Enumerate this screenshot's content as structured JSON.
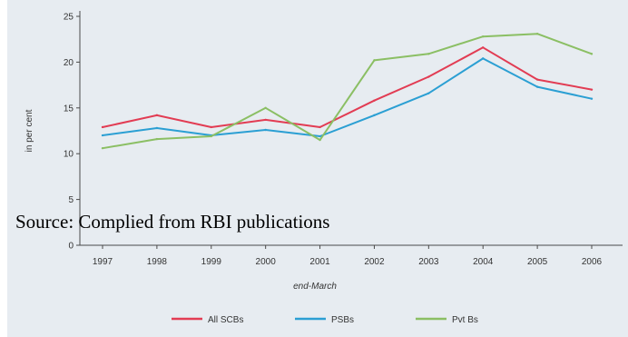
{
  "source_note": "Source:  Complied from RBI publications",
  "colors": {
    "background": "#e7ecf1",
    "all_scbs": "#e23c53",
    "psbs": "#2b9fd3",
    "pvt_bs": "#8bbf64"
  },
  "chart_data": {
    "type": "line",
    "title": "",
    "xlabel": "end-March",
    "ylabel": "in per cent",
    "categories": [
      "1997",
      "1998",
      "1999",
      "2000",
      "2001",
      "2002",
      "2003",
      "2004",
      "2005",
      "2006"
    ],
    "yticks": [
      0,
      5,
      10,
      15,
      20,
      25
    ],
    "ylim": [
      0,
      25
    ],
    "grid": false,
    "legend_position": "bottom",
    "series": [
      {
        "name": "All SCBs",
        "color": "#e23c53",
        "values": [
          12.9,
          14.2,
          12.9,
          13.7,
          12.9,
          15.8,
          18.4,
          21.6,
          18.1,
          17.0
        ]
      },
      {
        "name": "PSBs",
        "color": "#2b9fd3",
        "values": [
          12.0,
          12.8,
          12.0,
          12.6,
          11.9,
          14.2,
          16.6,
          20.4,
          17.3,
          16.0
        ]
      },
      {
        "name": "Pvt Bs",
        "color": "#8bbf64",
        "values": [
          10.6,
          11.6,
          11.9,
          15.0,
          11.5,
          20.2,
          20.9,
          22.8,
          23.1,
          20.9
        ]
      }
    ]
  }
}
